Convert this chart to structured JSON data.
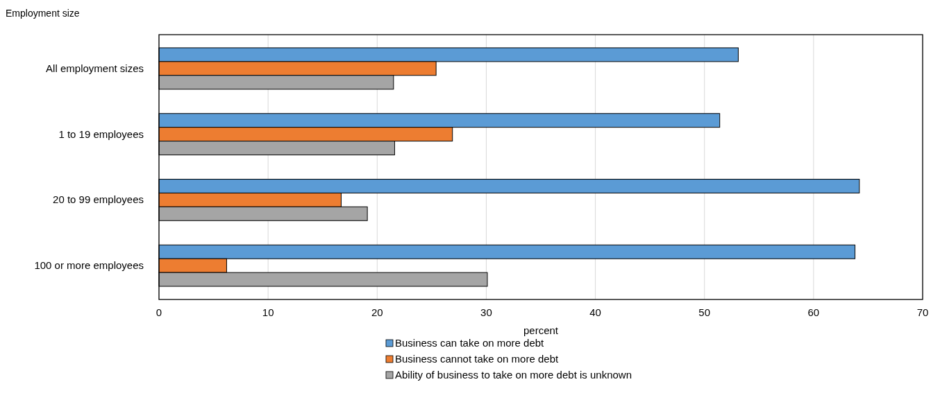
{
  "chart_data": {
    "type": "bar",
    "orientation": "horizontal",
    "ylabel": "Employment size",
    "xlabel": "percent",
    "categories": [
      "All employment sizes",
      "1 to 19 employees",
      "20 to 99 employees",
      "100 or more employees"
    ],
    "series": [
      {
        "name": "Business can take on more debt",
        "color": "#5b9bd5",
        "values": [
          53.1,
          51.4,
          64.2,
          63.8
        ]
      },
      {
        "name": "Business cannot take on more debt",
        "color": "#ed7d31",
        "values": [
          25.4,
          26.9,
          16.7,
          6.2
        ]
      },
      {
        "name": "Ability of business to take on more debt is unknown",
        "color": "#a5a5a5",
        "values": [
          21.5,
          21.6,
          19.1,
          30.1
        ]
      }
    ],
    "xlim": [
      0,
      70
    ],
    "xticks": [
      0,
      10,
      20,
      30,
      40,
      50,
      60,
      70
    ],
    "grid": "x",
    "legend": "bottom"
  }
}
